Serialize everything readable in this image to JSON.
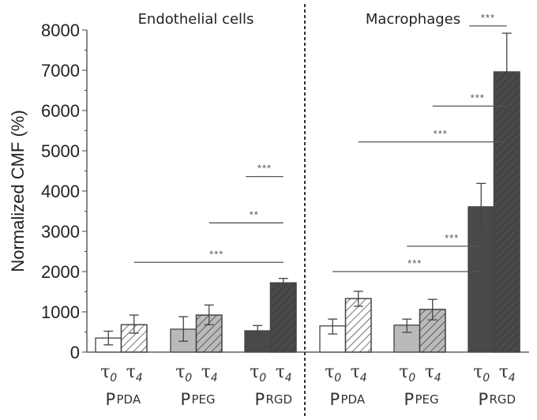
{
  "chart_data": {
    "type": "bar",
    "ylabel": "Normalized CMF (%)",
    "ylim": [
      0,
      8000
    ],
    "yticks": [
      0,
      1000,
      2000,
      3000,
      4000,
      5000,
      6000,
      7000,
      8000
    ],
    "grid": false,
    "colors": {
      "pPDA": "#ffffff",
      "pPEG": "#b9babc",
      "pRGD": "#48494b"
    },
    "time_labels": [
      {
        "sym": "τ",
        "sub": "0"
      },
      {
        "sym": "τ",
        "sub": "4"
      }
    ],
    "group_labels": [
      {
        "prefix": "P",
        "rest": "PDA"
      },
      {
        "prefix": "P",
        "rest": "PEG"
      },
      {
        "prefix": "P",
        "rest": "RGD"
      }
    ],
    "panels": [
      {
        "title": "Endothelial cells",
        "groups": [
          {
            "name": "pPDA",
            "values": [
              350,
              680
            ],
            "err_low": [
              180,
              470
            ],
            "err_high": [
              520,
              920
            ]
          },
          {
            "name": "pPEG",
            "values": [
              570,
              920
            ],
            "err_low": [
              270,
              680
            ],
            "err_high": [
              880,
              1170
            ]
          },
          {
            "name": "pRGD",
            "values": [
              530,
              1720
            ],
            "err_low": [
              420,
              1610
            ],
            "err_high": [
              660,
              1830
            ]
          }
        ],
        "significance": [
          {
            "label": "***",
            "from": "pPDA τ4",
            "to": "pRGD τ4",
            "y": 2230
          },
          {
            "label": "**",
            "from": "pPEG τ4",
            "to": "pRGD τ4",
            "y": 3210
          },
          {
            "label": "***",
            "from": "pRGD τ0",
            "to": "pRGD τ4",
            "y": 4360
          }
        ]
      },
      {
        "title": "Macrophages",
        "groups": [
          {
            "name": "pPDA",
            "values": [
              650,
              1330
            ],
            "err_low": [
              450,
              1140
            ],
            "err_high": [
              820,
              1510
            ]
          },
          {
            "name": "pPEG",
            "values": [
              670,
              1060
            ],
            "err_low": [
              490,
              800
            ],
            "err_high": [
              820,
              1310
            ]
          },
          {
            "name": "pRGD",
            "values": [
              3610,
              6960
            ],
            "err_low": [
              3000,
              6000
            ],
            "err_high": [
              4190,
              7920
            ]
          }
        ],
        "significance": [
          {
            "label": "***",
            "from": "pPDA τ0",
            "to": "pRGD τ0",
            "y": 2000
          },
          {
            "label": "***",
            "from": "pPEG τ0",
            "to": "pRGD τ0",
            "y": 2630
          },
          {
            "label": "***",
            "from": "pPDA τ4",
            "to": "pRGD τ4",
            "y": 5220
          },
          {
            "label": "***",
            "from": "pPEG τ4",
            "to": "pRGD τ4",
            "y": 6110
          },
          {
            "label": "***",
            "from": "pRGD τ0",
            "to": "pRGD τ4",
            "y": 8100
          }
        ]
      }
    ]
  }
}
